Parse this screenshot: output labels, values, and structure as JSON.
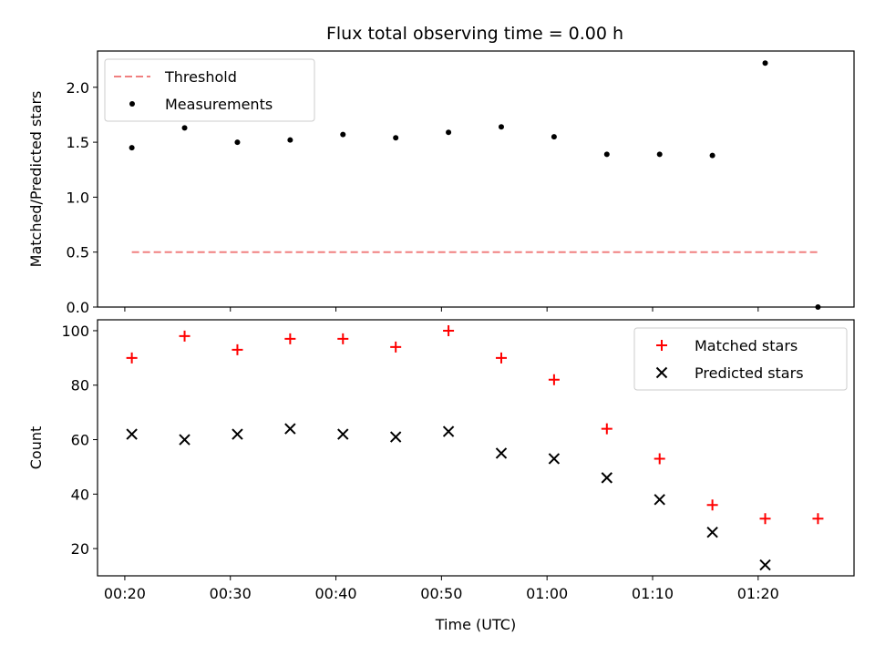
{
  "title": "Flux total observing time = 0.00 h",
  "chart_data": [
    {
      "type": "scatter",
      "ylabel": "Matched/Predicted stars",
      "ylim": [
        0,
        2.33
      ],
      "yticks": [
        "0.0",
        "0.5",
        "1.0",
        "1.5",
        "2.0"
      ],
      "xlim": [
        "00:17:25",
        "01:29:05"
      ],
      "legend": "top-left",
      "grid": false,
      "series": [
        {
          "name": "Threshold",
          "kind": "dashed-line",
          "color": "#f08080",
          "x": [
            "00:20:40",
            "01:25:40"
          ],
          "y": [
            0.5,
            0.5
          ]
        },
        {
          "name": "Measurements",
          "kind": "dots",
          "color": "#000000",
          "x": [
            "00:20:40",
            "00:25:40",
            "00:30:40",
            "00:35:40",
            "00:40:40",
            "00:45:40",
            "00:50:40",
            "00:55:40",
            "01:00:40",
            "01:05:40",
            "01:10:40",
            "01:15:40",
            "01:20:40",
            "01:25:40"
          ],
          "y": [
            1.45,
            1.63,
            1.5,
            1.52,
            1.57,
            1.54,
            1.59,
            1.64,
            1.55,
            1.39,
            1.39,
            1.38,
            2.22,
            0.0
          ]
        }
      ]
    },
    {
      "type": "scatter",
      "xlabel": "Time (UTC)",
      "ylabel": "Count",
      "ylim": [
        10,
        104
      ],
      "yticks": [
        "20",
        "40",
        "60",
        "80",
        "100"
      ],
      "xticks": [
        "00:20",
        "00:30",
        "00:40",
        "00:50",
        "01:00",
        "01:10",
        "01:20"
      ],
      "xlim": [
        "00:17:25",
        "01:29:05"
      ],
      "legend": "top-right",
      "grid": false,
      "series": [
        {
          "name": "Matched stars",
          "marker": "plus",
          "color": "#ff0000",
          "x": [
            "00:20:40",
            "00:25:40",
            "00:30:40",
            "00:35:40",
            "00:40:40",
            "00:45:40",
            "00:50:40",
            "00:55:40",
            "01:00:40",
            "01:05:40",
            "01:10:40",
            "01:15:40",
            "01:20:40",
            "01:25:40"
          ],
          "y": [
            90,
            98,
            93,
            97,
            97,
            94,
            100,
            90,
            82,
            64,
            53,
            36,
            31,
            31
          ]
        },
        {
          "name": "Predicted stars",
          "marker": "x",
          "color": "#000000",
          "x": [
            "00:20:40",
            "00:25:40",
            "00:30:40",
            "00:35:40",
            "00:40:40",
            "00:45:40",
            "00:50:40",
            "00:55:40",
            "01:00:40",
            "01:05:40",
            "01:10:40",
            "01:15:40",
            "01:20:40"
          ],
          "y": [
            62,
            60,
            62,
            64,
            62,
            61,
            63,
            55,
            53,
            46,
            38,
            26,
            14
          ]
        }
      ]
    }
  ]
}
